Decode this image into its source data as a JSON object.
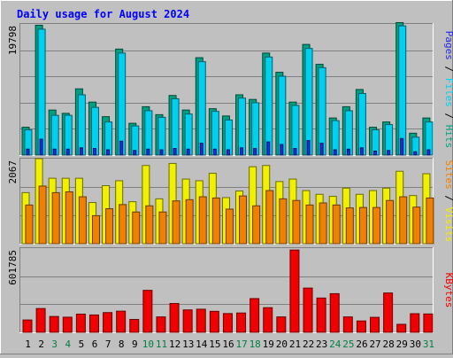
{
  "chart_data": {
    "type": "bar",
    "title": "Daily usage for August 2024",
    "categories": [
      "1",
      "2",
      "3",
      "4",
      "5",
      "6",
      "7",
      "8",
      "9",
      "10",
      "11",
      "12",
      "13",
      "14",
      "15",
      "16",
      "17",
      "18",
      "19",
      "20",
      "21",
      "22",
      "23",
      "24",
      "25",
      "26",
      "27",
      "28",
      "29",
      "30",
      "31"
    ],
    "weekend_days": [
      "3",
      "4",
      "10",
      "11",
      "17",
      "18",
      "24",
      "25",
      "31"
    ],
    "grid": true,
    "panels": [
      {
        "id": "top",
        "ymax_label": "19798",
        "ymax": 19798,
        "right_label": {
          "pages": "Pages",
          "files": "Files",
          "hits": "Hits",
          "sep": " / "
        },
        "series": [
          {
            "name": "Hits",
            "color": "#00a080",
            "values": [
              4200,
              19600,
              6800,
              6300,
              10000,
              8000,
              5800,
              16000,
              4800,
              7300,
              6100,
              9000,
              6800,
              14700,
              7000,
              5900,
              9100,
              8400,
              15400,
              12500,
              8000,
              16700,
              13700,
              5600,
              7300,
              9900,
              4200,
              5000,
              20000,
              3300,
              5600
            ]
          },
          {
            "name": "Files",
            "color": "#00d0f0",
            "values": [
              3800,
              19000,
              6000,
              6000,
              9100,
              7200,
              5000,
              15400,
              4400,
              6700,
              5700,
              8500,
              6200,
              14100,
              6600,
              5300,
              8600,
              7900,
              14800,
              11900,
              7500,
              16100,
              13200,
              5200,
              6700,
              9300,
              3800,
              4600,
              19500,
              2700,
              5000
            ]
          },
          {
            "name": "Pages",
            "color": "#2828e0",
            "values": [
              900,
              2400,
              900,
              900,
              1100,
              1000,
              800,
              2100,
              700,
              900,
              800,
              1000,
              900,
              1800,
              900,
              800,
              1100,
              1000,
              2000,
              1600,
              1000,
              2200,
              1800,
              800,
              900,
              1100,
              600,
              700,
              2500,
              500,
              800
            ]
          }
        ]
      },
      {
        "id": "middle",
        "ymax_label": "2067",
        "ymax": 2067,
        "right_label": {
          "sites": "Sites",
          "visits": "Visits",
          "sep": " / "
        },
        "series": [
          {
            "name": "Visits",
            "color": "#f0f000",
            "values": [
              1240,
              2067,
              1590,
              1590,
              1590,
              1000,
              1410,
              1530,
              1020,
              1900,
              1090,
              1950,
              1570,
              1530,
              1710,
              1120,
              1280,
              1870,
              1900,
              1510,
              1570,
              1290,
              1200,
              1150,
              1350,
              1200,
              1290,
              1350,
              1760,
              1170,
              1700
            ]
          },
          {
            "name": "Sites",
            "color": "#f08000",
            "values": [
              940,
              1400,
              1240,
              1260,
              1140,
              680,
              850,
              950,
              770,
              920,
              770,
              1040,
              1070,
              1140,
              1110,
              840,
              1160,
              920,
              1290,
              1090,
              1050,
              940,
              990,
              940,
              870,
              880,
              880,
              1050,
              1140,
              890,
              1110
            ]
          }
        ]
      },
      {
        "id": "bottom",
        "ymax_label": "601785",
        "ymax": 601785,
        "right_label": {
          "kbytes": "KBytes"
        },
        "series": [
          {
            "name": "KBytes",
            "color": "#f00000",
            "values": [
              88000,
              170000,
              113000,
              108000,
              130000,
              124000,
              141000,
              151000,
              92000,
              300000,
              110000,
              206000,
              160000,
              165000,
              150000,
              134000,
              138000,
              241000,
              176000,
              110000,
              588000,
              316000,
              245000,
              276000,
              110000,
              81000,
              107000,
              281000,
              57000,
              133000,
              131000
            ]
          }
        ]
      }
    ]
  },
  "colors": {
    "background": "#c0c0c0",
    "title": "#0000ff",
    "weekday_label": "#000000",
    "weekend_label": "#008040",
    "grid": "#808080"
  }
}
